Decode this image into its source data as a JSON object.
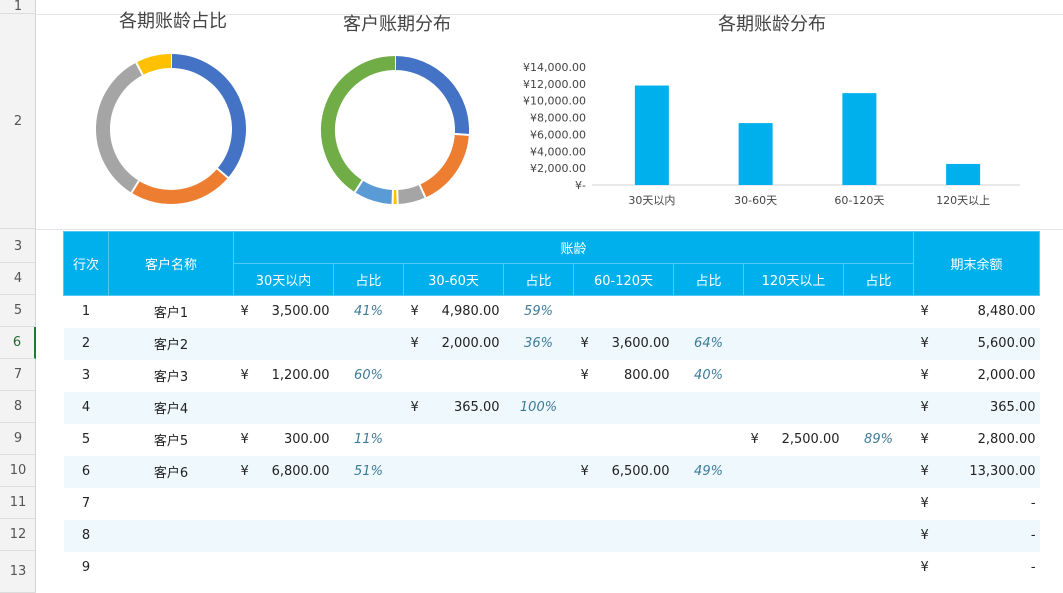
{
  "row_numbers": [
    "1",
    "2",
    "3",
    "4",
    "5",
    "6",
    "7",
    "8",
    "9",
    "10",
    "11",
    "12",
    "13"
  ],
  "active_row": "6",
  "charts": {
    "donut1": {
      "title": "各期账龄占比",
      "chart_data": {
        "type": "pie",
        "labels": [
          "30天以内",
          "30-60天",
          "60-120天",
          "120天以上"
        ],
        "values": [
          11800,
          7345,
          10900,
          2500
        ],
        "colors": [
          "#4472c4",
          "#ed7d31",
          "#a5a5a5",
          "#ffc000"
        ]
      }
    },
    "donut2": {
      "title": "客户账期分布",
      "chart_data": {
        "type": "pie",
        "labels": [
          "客户1",
          "客户2",
          "客户3",
          "客户4",
          "客户5",
          "客户6"
        ],
        "values": [
          8480,
          5600,
          2000,
          365,
          2800,
          13300
        ],
        "colors": [
          "#4472c4",
          "#ed7d31",
          "#a5a5a5",
          "#ffc000",
          "#5b9bd5",
          "#70ad47"
        ]
      }
    },
    "bar": {
      "title": "各期账龄分布",
      "chart_data": {
        "type": "bar",
        "categories": [
          "30天以内",
          "30-60天",
          "60-120天",
          "120天以上"
        ],
        "values": [
          11800,
          7345,
          10900,
          2500
        ],
        "ylim": [
          0,
          14000
        ],
        "yticks": [
          "¥14,000.00",
          "¥12,000.00",
          "¥10,000.00",
          "¥8,000.00",
          "¥6,000.00",
          "¥4,000.00",
          "¥2,000.00",
          "¥-"
        ],
        "color": "#00b0ec",
        "grid": false
      }
    }
  },
  "table": {
    "headers": {
      "index": "行次",
      "customer": "客户名称",
      "aging": "账龄",
      "balance": "期末余额",
      "sub": [
        "30天以内",
        "占比",
        "30-60天",
        "占比",
        "60-120天",
        "占比",
        "120天以上",
        "占比"
      ]
    },
    "currency": "¥",
    "rows": [
      {
        "idx": "1",
        "name": "客户1",
        "b1": "3,500.00",
        "p1": "41%",
        "b2": "4,980.00",
        "p2": "59%",
        "b3": "",
        "p3": "",
        "b4": "",
        "p4": "",
        "total": "8,480.00"
      },
      {
        "idx": "2",
        "name": "客户2",
        "b1": "",
        "p1": "",
        "b2": "2,000.00",
        "p2": "36%",
        "b3": "3,600.00",
        "p3": "64%",
        "b4": "",
        "p4": "",
        "total": "5,600.00"
      },
      {
        "idx": "3",
        "name": "客户3",
        "b1": "1,200.00",
        "p1": "60%",
        "b2": "",
        "p2": "",
        "b3": "800.00",
        "p3": "40%",
        "b4": "",
        "p4": "",
        "total": "2,000.00"
      },
      {
        "idx": "4",
        "name": "客户4",
        "b1": "",
        "p1": "",
        "b2": "365.00",
        "p2": "100%",
        "b3": "",
        "p3": "",
        "b4": "",
        "p4": "",
        "total": "365.00"
      },
      {
        "idx": "5",
        "name": "客户5",
        "b1": "300.00",
        "p1": "11%",
        "b2": "",
        "p2": "",
        "b3": "",
        "p3": "",
        "b4": "2,500.00",
        "p4": "89%",
        "total": "2,800.00"
      },
      {
        "idx": "6",
        "name": "客户6",
        "b1": "6,800.00",
        "p1": "51%",
        "b2": "",
        "p2": "",
        "b3": "6,500.00",
        "p3": "49%",
        "b4": "",
        "p4": "",
        "total": "13,300.00"
      },
      {
        "idx": "7",
        "name": "",
        "b1": "",
        "p1": "",
        "b2": "",
        "p2": "",
        "b3": "",
        "p3": "",
        "b4": "",
        "p4": "",
        "total": "-"
      },
      {
        "idx": "8",
        "name": "",
        "b1": "",
        "p1": "",
        "b2": "",
        "p2": "",
        "b3": "",
        "p3": "",
        "b4": "",
        "p4": "",
        "total": "-"
      },
      {
        "idx": "9",
        "name": "",
        "b1": "",
        "p1": "",
        "b2": "",
        "p2": "",
        "b3": "",
        "p3": "",
        "b4": "",
        "p4": "",
        "total": "-"
      }
    ]
  }
}
